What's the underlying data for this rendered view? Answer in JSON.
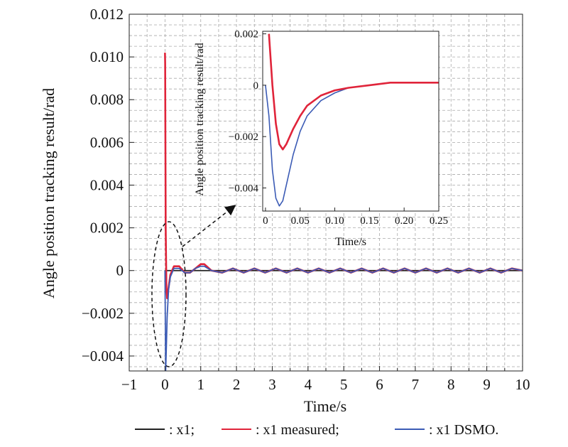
{
  "chart_data": [
    {
      "type": "line",
      "xlabel": "Time/s",
      "ylabel": "Angle position tracking result/rad",
      "xlim": [
        -1,
        10
      ],
      "ylim": [
        -0.0047,
        0.012
      ],
      "x_ticks": [
        "−1",
        "0",
        "1",
        "2",
        "3",
        "4",
        "5",
        "6",
        "7",
        "8",
        "9",
        "10"
      ],
      "y_ticks": [
        "0.012",
        "0.010",
        "0.008",
        "0.006",
        "0.004",
        "0.002",
        "0",
        "−0.002",
        "−0.004"
      ],
      "grid": true,
      "colors": {
        "x1": "#222222",
        "measured": "#e0243a",
        "dsmo": "#3b5bb5"
      },
      "series": [
        {
          "name": "x1",
          "x": [
            0,
            10
          ],
          "y": [
            0,
            0
          ]
        },
        {
          "name": "x1 measured",
          "x": [
            0,
            0.005,
            0.02,
            0.04,
            0.06,
            0.1,
            0.15,
            0.25,
            0.4,
            0.55,
            0.7,
            0.85,
            1.0,
            1.1,
            1.3,
            1.6,
            1.9,
            2.2,
            2.5,
            2.8,
            3.1,
            3.4,
            3.7,
            4.0,
            4.3,
            4.6,
            4.9,
            5.2,
            5.5,
            5.8,
            6.1,
            6.4,
            6.7,
            7.0,
            7.3,
            7.6,
            7.9,
            8.2,
            8.5,
            8.8,
            9.1,
            9.4,
            9.7,
            10.0
          ],
          "y": [
            0.0102,
            0.0097,
            0.002,
            -0.0008,
            -0.0013,
            -0.0008,
            -0.0002,
            0.0002,
            0.0002,
            -0.0001,
            -0.0001,
            0.0001,
            0.0003,
            0.0003,
            0.0,
            -0.0001,
            0.0001,
            -0.0001,
            0.0001,
            -0.0001,
            0.0001,
            -0.0001,
            0.0001,
            -0.0001,
            0.0001,
            -0.0001,
            0.0001,
            -0.0001,
            0.0001,
            -0.0001,
            0.0001,
            -0.0001,
            0.0001,
            -0.0001,
            0.0001,
            -0.0001,
            0.0001,
            -0.0001,
            0.0001,
            -0.0001,
            0.0001,
            -0.0001,
            0.0001,
            0.0
          ]
        },
        {
          "name": "x1 DSMO.",
          "x": [
            0,
            0.01,
            0.02,
            0.04,
            0.06,
            0.1,
            0.15,
            0.25,
            0.4,
            0.55,
            0.7,
            0.85,
            1.0,
            1.1,
            1.3,
            1.6,
            1.9,
            2.2,
            2.5,
            2.8,
            3.1,
            3.4,
            3.7,
            4.0,
            4.3,
            4.6,
            4.9,
            5.2,
            5.5,
            5.8,
            6.1,
            6.4,
            6.7,
            7.0,
            7.3,
            7.6,
            7.9,
            8.2,
            8.5,
            8.8,
            9.1,
            9.4,
            9.7,
            10.0
          ],
          "y": [
            0.0,
            -0.0025,
            -0.0047,
            -0.0035,
            -0.0022,
            -0.0009,
            -0.0003,
            0.0001,
            0.0001,
            -0.0001,
            -0.0001,
            0.0001,
            0.0002,
            0.0002,
            0.0,
            -0.0001,
            0.0001,
            -0.0001,
            0.0001,
            -0.0001,
            0.0001,
            -0.0001,
            0.0001,
            -0.0001,
            0.0001,
            -0.0001,
            0.0001,
            -0.0001,
            0.0001,
            -0.0001,
            0.0001,
            -0.0001,
            0.0001,
            -0.0001,
            0.0001,
            -0.0001,
            0.0001,
            -0.0001,
            0.0001,
            -0.0001,
            0.0001,
            -0.0001,
            0.0001,
            0.0
          ]
        }
      ],
      "legend": {
        "position": "bottom",
        "entries": [
          ": x1;",
          ": x1 measured;",
          ": x1 DSMO."
        ]
      }
    },
    {
      "type": "line",
      "inset": true,
      "xlabel": "Time/s",
      "ylabel": "Angle position tracking result/rad",
      "xlim": [
        -0.004,
        0.25
      ],
      "ylim": [
        -0.0049,
        0.0021
      ],
      "x_ticks": [
        "0",
        "0.05",
        "0.10",
        "0.15",
        "0.20",
        "0.25"
      ],
      "y_ticks": [
        "0.002",
        "0",
        "−0.002",
        "−0.004"
      ],
      "series": [
        {
          "name": "x1 measured",
          "x": [
            0.005,
            0.01,
            0.015,
            0.02,
            0.025,
            0.03,
            0.04,
            0.05,
            0.06,
            0.08,
            0.1,
            0.12,
            0.15,
            0.18,
            0.2,
            0.22,
            0.25
          ],
          "y": [
            0.002,
            0.0,
            -0.0015,
            -0.0023,
            -0.0025,
            -0.0023,
            -0.0017,
            -0.0012,
            -0.0008,
            -0.0004,
            -0.0002,
            -0.0001,
            0.0,
            0.0001,
            0.0001,
            0.0001,
            0.0001
          ]
        },
        {
          "name": "x1 DSMO.",
          "x": [
            0.0,
            0.005,
            0.01,
            0.015,
            0.02,
            0.025,
            0.03,
            0.04,
            0.05,
            0.06,
            0.08,
            0.1,
            0.12,
            0.15,
            0.18,
            0.2,
            0.22,
            0.25
          ],
          "y": [
            0.0,
            -0.0012,
            -0.0033,
            -0.0044,
            -0.0047,
            -0.0045,
            -0.0039,
            -0.0027,
            -0.0018,
            -0.0012,
            -0.0006,
            -0.0003,
            -0.0001,
            0.0,
            0.0001,
            0.0001,
            0.0001,
            0.0001
          ]
        }
      ]
    }
  ]
}
